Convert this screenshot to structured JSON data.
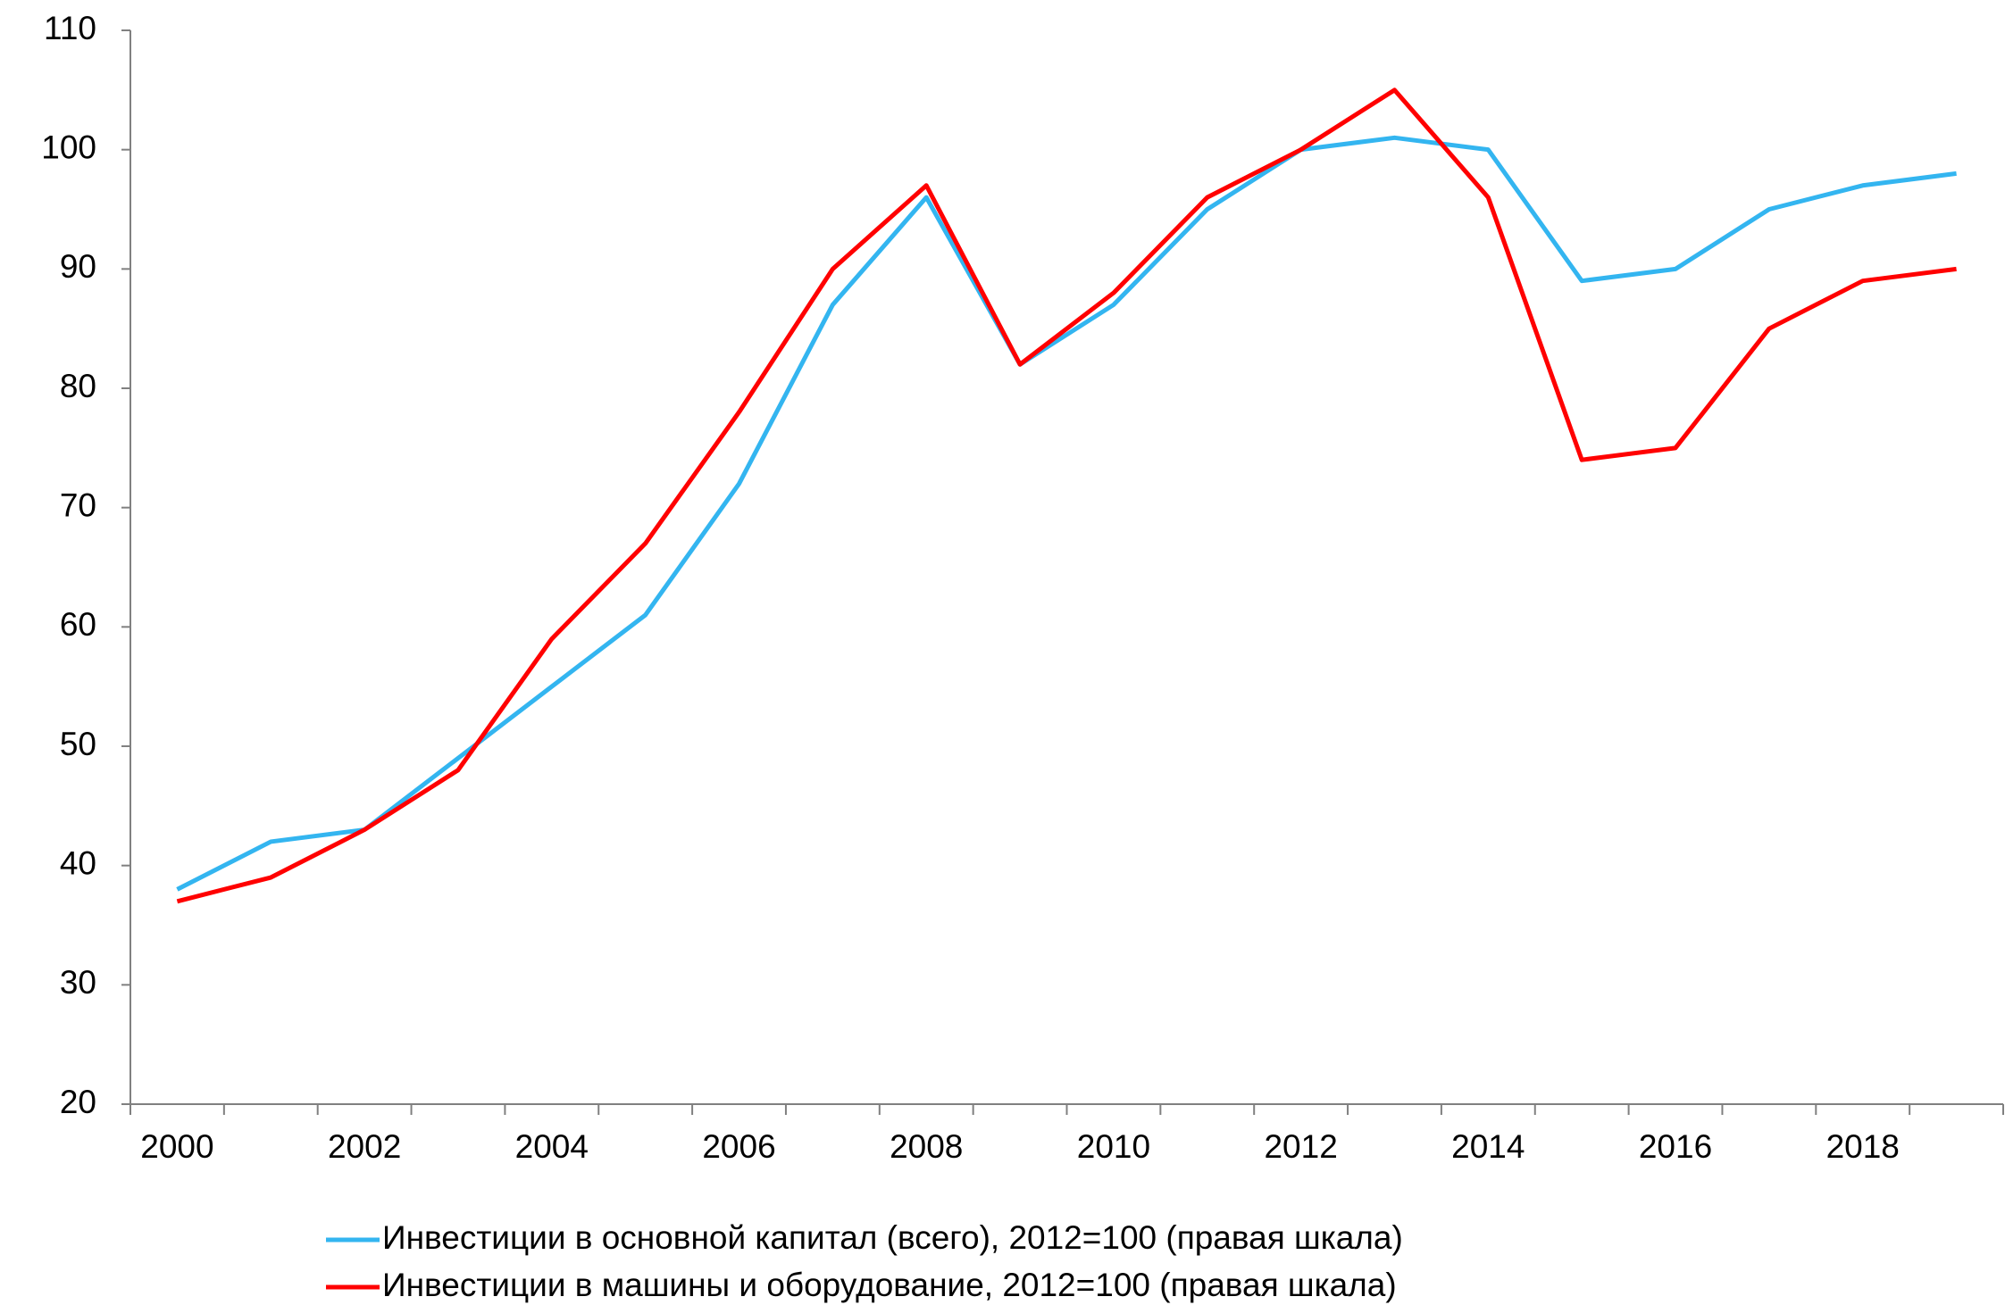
{
  "chart_data": {
    "type": "line",
    "categories": [
      "2000",
      null,
      "2002",
      null,
      "2004",
      null,
      "2006",
      null,
      "2008",
      null,
      "2010",
      null,
      "2012",
      null,
      "2014",
      null,
      "2016",
      null,
      "2018",
      null
    ],
    "series": [
      {
        "name": "Инвестиции в основной капитал (всего), 2012=100 (правая шкала)",
        "color": "#33b5f0",
        "values": [
          38,
          42,
          43,
          49,
          55,
          61,
          72,
          87,
          96,
          82,
          87,
          95,
          100,
          101,
          100,
          89,
          90,
          95,
          97,
          98
        ]
      },
      {
        "name": "Инвестиции в машины и оборудование, 2012=100 (правая шкала)",
        "color": "#ff0000",
        "values": [
          37,
          39,
          43,
          48,
          59,
          67,
          78,
          90,
          97,
          82,
          88,
          96,
          100,
          105,
          96,
          74,
          75,
          85,
          89,
          90
        ]
      }
    ],
    "ylim": [
      20,
      110
    ],
    "yticks": [
      20,
      30,
      40,
      50,
      60,
      70,
      80,
      90,
      100,
      110
    ],
    "grid": false,
    "legend": "bottom"
  }
}
